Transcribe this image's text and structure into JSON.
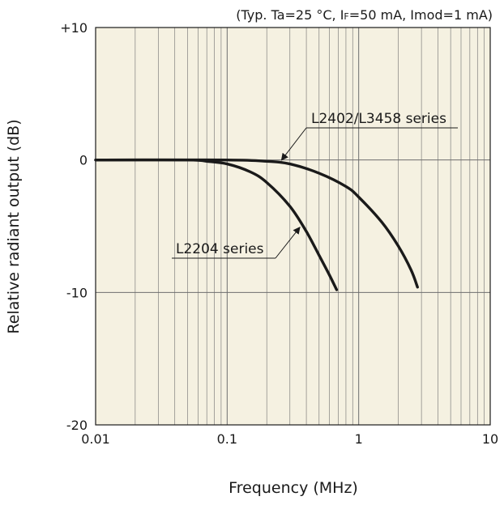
{
  "chart_data": {
    "type": "line",
    "title": "",
    "conditions": {
      "prefix": "(Typ. Ta=25 °C, I",
      "sub": "F",
      "suffix": "=50 mA, Imod=1 mA)"
    },
    "xlabel": "Frequency (MHz)",
    "ylabel": "Relative radiant output (dB)",
    "x_scale": "log",
    "xlim": [
      0.01,
      10
    ],
    "ylim": [
      -20,
      10
    ],
    "x_ticks": [
      {
        "value": 0.01,
        "label": "0.01"
      },
      {
        "value": 0.1,
        "label": "0.1"
      },
      {
        "value": 1,
        "label": "1"
      },
      {
        "value": 10,
        "label": "10"
      }
    ],
    "y_ticks": [
      {
        "value": 10,
        "label": "+10"
      },
      {
        "value": 0,
        "label": "0"
      },
      {
        "value": -10,
        "label": "-10"
      },
      {
        "value": -20,
        "label": "-20"
      }
    ],
    "grid": true,
    "background": "#f5f1e1",
    "line_color": "#1a1a1a",
    "series": [
      {
        "name": "L2402/L3458 series",
        "x": [
          0.01,
          0.1,
          0.2,
          0.3,
          0.5,
          0.8,
          1.0,
          1.5,
          2.0,
          2.5,
          2.8
        ],
        "y": [
          0,
          0,
          -0.1,
          -0.3,
          -1.0,
          -2.0,
          -2.8,
          -4.7,
          -6.5,
          -8.3,
          -9.6
        ]
      },
      {
        "name": "L2204 series",
        "x": [
          0.01,
          0.05,
          0.07,
          0.1,
          0.15,
          0.2,
          0.3,
          0.4,
          0.5,
          0.6,
          0.68
        ],
        "y": [
          0,
          0,
          -0.1,
          -0.3,
          -0.9,
          -1.7,
          -3.5,
          -5.4,
          -7.2,
          -8.7,
          -9.8
        ]
      }
    ],
    "annotations": [
      {
        "series": 0,
        "text": "L2402/L3458 series",
        "x": 0.25
      },
      {
        "series": 1,
        "text": "L2204 series",
        "x": 0.37
      }
    ]
  }
}
